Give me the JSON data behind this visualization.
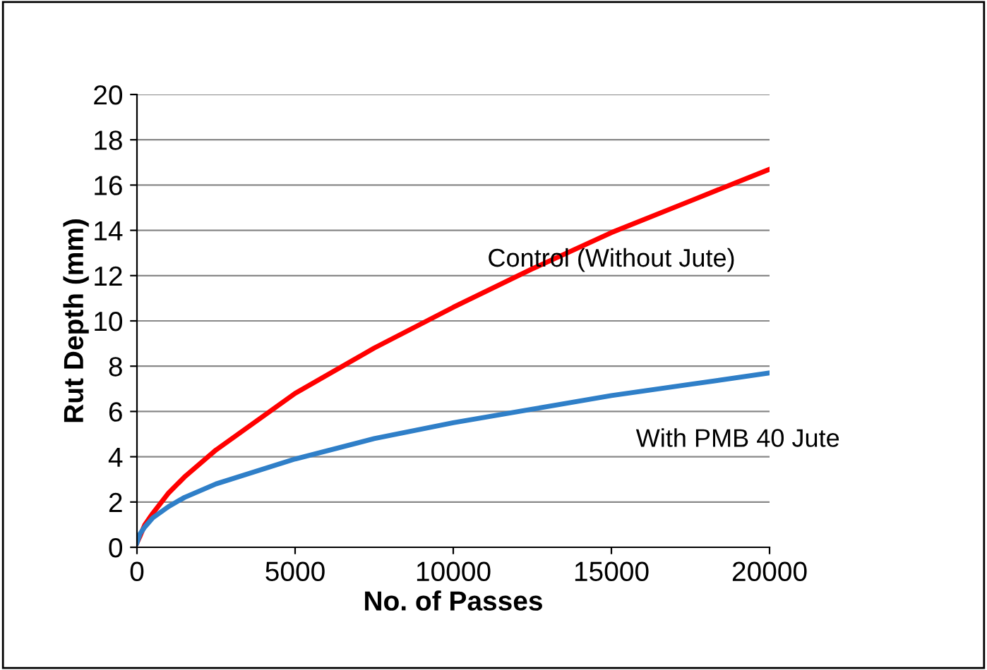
{
  "chart_data": {
    "type": "line",
    "xlabel": "No. of Passes",
    "ylabel": "Rut Depth (mm)",
    "xlim": [
      0,
      20000
    ],
    "xticks": [
      0,
      5000,
      10000,
      15000,
      20000
    ],
    "ylim": [
      0,
      20
    ],
    "yticks": [
      0,
      2,
      4,
      6,
      8,
      10,
      12,
      14,
      16,
      18,
      20
    ],
    "grid": "y",
    "marker": "none",
    "line_style": "solid",
    "series": [
      {
        "name": "Control (Without Jute)",
        "color": "#ff0000",
        "x": [
          0,
          100,
          250,
          500,
          1000,
          1500,
          2500,
          5000,
          7500,
          10000,
          12500,
          15000,
          17500,
          20000
        ],
        "values": [
          0.2,
          0.5,
          1.0,
          1.5,
          2.4,
          3.1,
          4.3,
          6.8,
          8.8,
          10.6,
          12.3,
          13.9,
          15.3,
          16.7
        ]
      },
      {
        "name": "With PMB 40 Jute",
        "color": "#2f7fc8",
        "x": [
          0,
          100,
          250,
          500,
          1000,
          1500,
          2500,
          5000,
          7500,
          10000,
          12500,
          15000,
          17500,
          20000
        ],
        "values": [
          0.2,
          0.6,
          0.9,
          1.3,
          1.8,
          2.2,
          2.8,
          3.9,
          4.8,
          5.5,
          6.1,
          6.7,
          7.2,
          7.7
        ]
      }
    ]
  }
}
